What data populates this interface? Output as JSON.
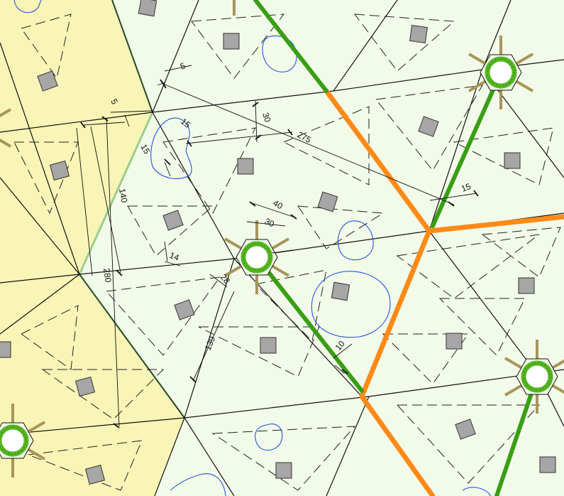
{
  "colors": {
    "background": "#ffffff",
    "tile_fill": "#f2fbe9",
    "highlight_fill": "#f9f5b6",
    "tile_line": "#111111",
    "dashed_line": "#222222",
    "square_fill": "#a6a6a6",
    "blob_line": "#2255dd",
    "green_path": "#3a9e14",
    "orange_path": "#ff8a17",
    "tree_ring": "#56b622",
    "tree_spokes": "#a8955b"
  },
  "dimensions": [
    {
      "id": "dim-5-top",
      "label": "5"
    },
    {
      "id": "dim-5-left",
      "label": "5"
    },
    {
      "id": "dim-30-upper",
      "label": "30"
    },
    {
      "id": "dim-275",
      "label": "275"
    },
    {
      "id": "dim-15-blob",
      "label": "15"
    },
    {
      "id": "dim-15-left",
      "label": "15"
    },
    {
      "id": "dim-140",
      "label": "140"
    },
    {
      "id": "dim-40",
      "label": "40"
    },
    {
      "id": "dim-30-hub",
      "label": "30"
    },
    {
      "id": "dim-14",
      "label": "14"
    },
    {
      "id": "dim-280",
      "label": "280"
    },
    {
      "id": "dim-28",
      "label": "28"
    },
    {
      "id": "dim-15-right",
      "label": "15"
    },
    {
      "id": "dim-139",
      "label": "139"
    },
    {
      "id": "dim-10",
      "label": "10"
    }
  ],
  "icons": {
    "tree": "tree-icon",
    "paver": "paver-square-icon"
  }
}
